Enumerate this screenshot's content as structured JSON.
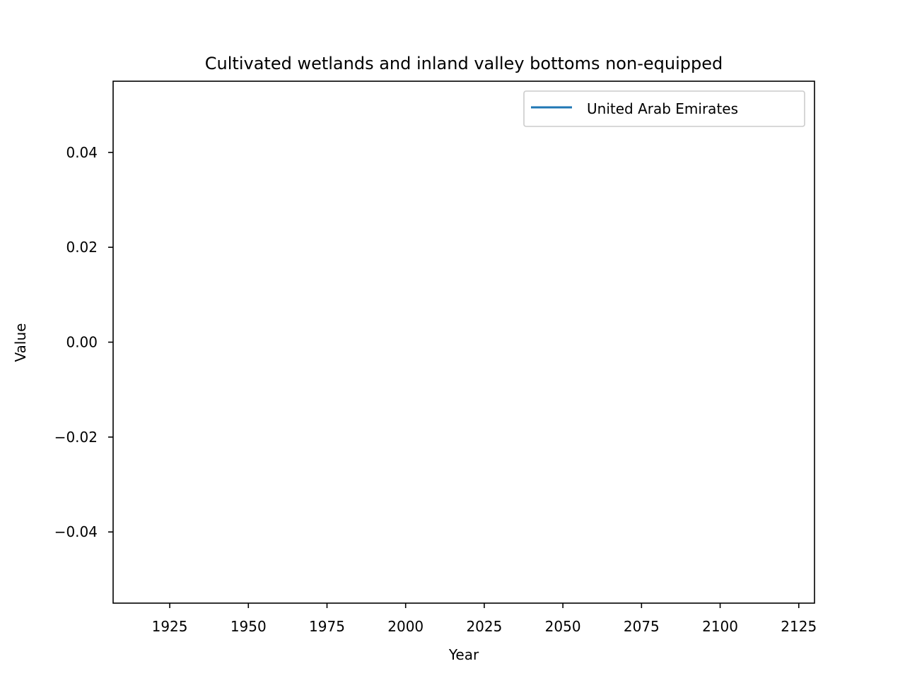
{
  "chart_data": {
    "type": "line",
    "title": "Cultivated wetlands and inland valley bottoms non-equipped",
    "xlabel": "Year",
    "ylabel": "Value",
    "xlim": [
      1907,
      2130
    ],
    "ylim": [
      -0.055,
      0.055
    ],
    "x_ticks": [
      1925,
      1950,
      1975,
      2000,
      2025,
      2050,
      2075,
      2100,
      2125
    ],
    "x_tick_labels": [
      "1925",
      "1950",
      "1975",
      "2000",
      "2025",
      "2050",
      "2075",
      "2100",
      "2125"
    ],
    "y_ticks": [
      -0.04,
      -0.02,
      0.0,
      0.02,
      0.04
    ],
    "y_tick_labels": [
      "−0.04",
      "−0.02",
      "0.00",
      "0.02",
      "0.04"
    ],
    "grid": false,
    "legend_position": "top-right",
    "series": [
      {
        "name": "United Arab Emirates",
        "color": "#1f77b4",
        "x": [],
        "y": []
      }
    ]
  }
}
